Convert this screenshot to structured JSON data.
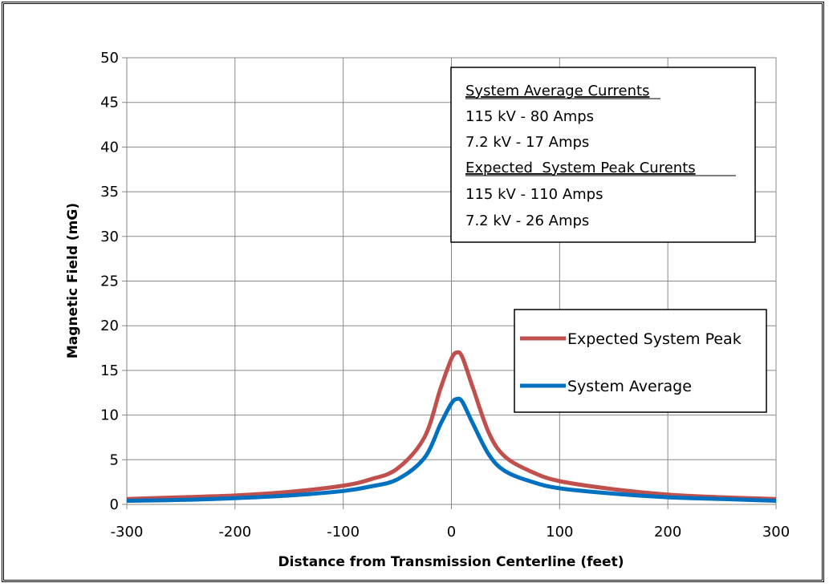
{
  "chart_data": {
    "type": "line",
    "title": "",
    "xlabel": "Distance from Transmission Centerline (feet)",
    "ylabel": "Magnetic Field (mG)",
    "xlim": [
      -300,
      300
    ],
    "ylim": [
      0,
      50
    ],
    "x_ticks": [
      -300,
      -200,
      -100,
      0,
      100,
      200,
      300
    ],
    "y_ticks": [
      0,
      5,
      10,
      15,
      20,
      25,
      30,
      35,
      40,
      45,
      50
    ],
    "grid": true,
    "legend_position": "right",
    "x": [
      -300,
      -250,
      -200,
      -150,
      -100,
      -75,
      -50,
      -25,
      -10,
      0,
      5,
      10,
      20,
      35,
      50,
      75,
      100,
      150,
      200,
      250,
      300
    ],
    "series": [
      {
        "name": "Expected System Peak",
        "color": "#c0504d",
        "values": [
          0.6,
          0.8,
          1.0,
          1.4,
          2.1,
          2.8,
          4.0,
          7.5,
          13.0,
          16.3,
          17.0,
          16.5,
          13.0,
          7.9,
          5.3,
          3.6,
          2.6,
          1.7,
          1.1,
          0.8,
          0.6
        ]
      },
      {
        "name": "System Average",
        "color": "#0070c0",
        "values": [
          0.4,
          0.5,
          0.7,
          1.0,
          1.5,
          2.0,
          2.8,
          5.2,
          9.0,
          11.3,
          11.8,
          11.5,
          9.0,
          5.5,
          3.7,
          2.5,
          1.8,
          1.2,
          0.8,
          0.6,
          0.4
        ]
      }
    ],
    "info_box": {
      "heading1": "System Average Currents",
      "line1": "115 kV - 80 Amps",
      "line2": "7.2 kV - 17 Amps",
      "heading2": "Expected  System Peak Curents",
      "line3": "115 kV - 110 Amps",
      "line4": "7.2 kV - 26 Amps"
    }
  }
}
